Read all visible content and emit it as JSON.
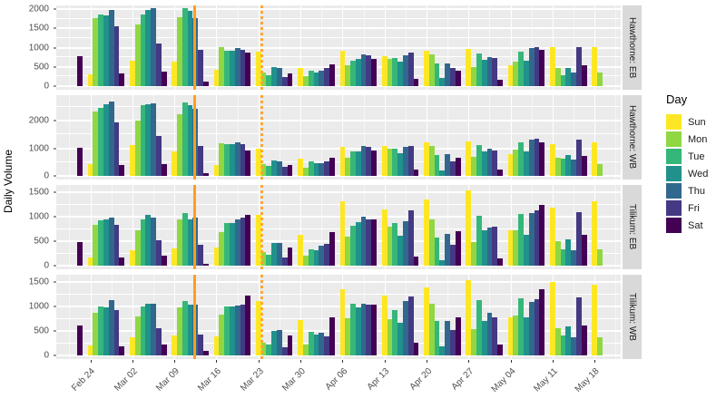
{
  "y_axis_title": "Daily Volume",
  "legend": {
    "title": "Day",
    "entries": [
      {
        "label": "Sun",
        "color": "#FDE725"
      },
      {
        "label": "Mon",
        "color": "#90D743"
      },
      {
        "label": "Tue",
        "color": "#35B779"
      },
      {
        "label": "Wed",
        "color": "#21918C"
      },
      {
        "label": "Thu",
        "color": "#31688E"
      },
      {
        "label": "Fri",
        "color": "#443983"
      },
      {
        "label": "Sat",
        "color": "#440154"
      }
    ]
  },
  "chart_data": {
    "type": "bar",
    "grouping": "weekly groups of daily bars, days Sun-Sat",
    "x_tick_labels": [
      "Feb 24",
      "Mar 02",
      "Mar 09",
      "Mar 16",
      "Mar 23",
      "Mar 30",
      "Apr 06",
      "Apr 13",
      "Apr 20",
      "Apr 27",
      "May 04",
      "May 11",
      "May 18"
    ],
    "day_order": [
      "Sun",
      "Mon",
      "Tue",
      "Wed",
      "Thu",
      "Fri",
      "Sat"
    ],
    "panel_background": "#EBEBEB",
    "vlines": [
      {
        "style": "solid",
        "color": "#FF9E1B",
        "x_frac": 0.2428
      },
      {
        "style": "dotted",
        "color": "#FFA733",
        "x_frac": 0.3617
      }
    ],
    "facets": [
      {
        "label": "Hawthorne: EB",
        "y_ticks": [
          0,
          500,
          1000,
          1500,
          2000
        ],
        "y_minor": [
          250,
          750,
          1250,
          1750
        ],
        "y_max": 2095,
        "weeks": [
          {
            "label": null,
            "values": [
              null,
              null,
              null,
              null,
              null,
              null,
              780
            ]
          },
          {
            "label": "Feb 24",
            "values": [
              300,
              1760,
              1850,
              1840,
              1975,
              1560,
              330
            ]
          },
          {
            "label": "Mar 02",
            "values": [
              660,
              1590,
              1860,
              1970,
              2020,
              1100,
              380
            ]
          },
          {
            "label": "Mar 09",
            "values": [
              640,
              1800,
              2020,
              1950,
              1775,
              940,
              120
            ]
          },
          {
            "label": "Mar 16",
            "values": [
              430,
              1010,
              920,
              930,
              990,
              940,
              870
            ]
          },
          {
            "label": "Mar 23",
            "values": [
              890,
              360,
              275,
              490,
              465,
              245,
              325
            ]
          },
          {
            "label": "Mar 30",
            "values": [
              465,
              260,
              405,
              360,
              405,
              465,
              560
            ]
          },
          {
            "label": "Apr 06",
            "values": [
              910,
              535,
              665,
              700,
              815,
              790,
              715
            ]
          },
          {
            "label": "Apr 13",
            "values": [
              780,
              700,
              725,
              625,
              795,
              870,
              195
            ]
          },
          {
            "label": "Apr 20",
            "values": [
              910,
              815,
              585,
              220,
              600,
              465,
              410
            ]
          },
          {
            "label": "Apr 27",
            "values": [
              975,
              490,
              845,
              685,
              765,
              730,
              165
            ]
          },
          {
            "label": "May 04",
            "values": [
              545,
              625,
              895,
              665,
              990,
              1005,
              950
            ]
          },
          {
            "label": "May 11",
            "values": [
              1005,
              460,
              290,
              470,
              350,
              1010,
              550
            ]
          },
          {
            "label": "May 18",
            "values": [
              1005,
              350,
              null,
              null,
              null,
              null,
              null
            ]
          }
        ]
      },
      {
        "label": "Hawthorne: WB",
        "y_ticks": [
          0,
          1000,
          2000
        ],
        "y_minor": [
          500,
          1500,
          2500
        ],
        "y_max": 2920,
        "weeks": [
          {
            "label": null,
            "values": [
              null,
              null,
              null,
              null,
              null,
              null,
              1005
            ]
          },
          {
            "label": "Feb 24",
            "values": [
              415,
              2330,
              2470,
              2600,
              2700,
              1920,
              390
            ]
          },
          {
            "label": "Mar 02",
            "values": [
              1100,
              2000,
              2550,
              2600,
              2630,
              1450,
              440
            ]
          },
          {
            "label": "Mar 09",
            "values": [
              870,
              2220,
              2650,
              2565,
              2435,
              1090,
              100
            ]
          },
          {
            "label": "Mar 16",
            "values": [
              390,
              1180,
              1145,
              1160,
              1200,
              1165,
              930
            ]
          },
          {
            "label": "Mar 23",
            "values": [
              970,
              440,
              350,
              560,
              535,
              330,
              395
            ]
          },
          {
            "label": "Mar 30",
            "values": [
              625,
              305,
              510,
              445,
              475,
              535,
              650
            ]
          },
          {
            "label": "Apr 06",
            "values": [
              1050,
              670,
              880,
              900,
              1085,
              1050,
              935
            ]
          },
          {
            "label": "Apr 13",
            "values": [
              1085,
              970,
              995,
              820,
              1050,
              1085,
              245
            ]
          },
          {
            "label": "Apr 20",
            "values": [
              1225,
              1085,
              740,
              210,
              790,
              510,
              650
            ]
          },
          {
            "label": "Apr 27",
            "values": [
              1250,
              705,
              1130,
              900,
              995,
              935,
              245
            ]
          },
          {
            "label": "May 04",
            "values": [
              800,
              940,
              1200,
              880,
              1320,
              1330,
              1200
            ]
          },
          {
            "label": "May 11",
            "values": [
              1150,
              650,
              630,
              740,
              590,
              1320,
              710
            ]
          },
          {
            "label": "May 18",
            "values": [
              1225,
              440,
              null,
              null,
              null,
              null,
              null
            ]
          }
        ]
      },
      {
        "label": "Tilikum: EB",
        "y_ticks": [
          0,
          500,
          1000,
          1500
        ],
        "y_minor": [
          250,
          750,
          1250
        ],
        "y_max": 1650,
        "weeks": [
          {
            "label": null,
            "values": [
              null,
              null,
              null,
              null,
              null,
              null,
              480
            ]
          },
          {
            "label": "Feb 24",
            "values": [
              170,
              835,
              920,
              945,
              975,
              840,
              165
            ]
          },
          {
            "label": "Mar 02",
            "values": [
              310,
              730,
              955,
              1030,
              990,
              520,
              195
            ]
          },
          {
            "label": "Mar 09",
            "values": [
              350,
              955,
              1080,
              945,
              975,
              430,
              40
            ]
          },
          {
            "label": "Mar 16",
            "values": [
              375,
              690,
              870,
              870,
              950,
              990,
              1030
            ]
          },
          {
            "label": "Mar 23",
            "values": [
              1035,
              285,
              220,
              465,
              470,
              160,
              375
            ]
          },
          {
            "label": "Mar 30",
            "values": [
              625,
              205,
              340,
              315,
              400,
              440,
              685
            ]
          },
          {
            "label": "Apr 06",
            "values": [
              1315,
              585,
              820,
              895,
              995,
              945,
              955
            ]
          },
          {
            "label": "Apr 13",
            "values": [
              1145,
              790,
              870,
              605,
              900,
              1130,
              185
            ]
          },
          {
            "label": "Apr 20",
            "values": [
              1345,
              955,
              575,
              120,
              650,
              420,
              710
            ]
          },
          {
            "label": "Apr 27",
            "values": [
              1530,
              480,
              1020,
              730,
              770,
              790,
              155
            ]
          },
          {
            "label": "May 04",
            "values": [
              730,
              730,
              1055,
              635,
              1080,
              1140,
              1240
            ]
          },
          {
            "label": "May 11",
            "values": [
              1180,
              510,
              340,
              535,
              315,
              1095,
              635
            ]
          },
          {
            "label": "May 18",
            "values": [
              1325,
              340,
              null,
              null,
              null,
              null,
              null
            ]
          }
        ]
      },
      {
        "label": "Tilikum: WB",
        "y_ticks": [
          0,
          500,
          1000,
          1500
        ],
        "y_minor": [
          250,
          750,
          1250
        ],
        "y_max": 1650,
        "weeks": [
          {
            "label": null,
            "values": [
              null,
              null,
              null,
              null,
              null,
              null,
              610
            ]
          },
          {
            "label": "Feb 24",
            "values": [
              210,
              870,
              1000,
              990,
              1130,
              920,
              180
            ]
          },
          {
            "label": "Mar 02",
            "values": [
              380,
              795,
              1005,
              1065,
              1055,
              565,
              230
            ]
          },
          {
            "label": "Mar 09",
            "values": [
              415,
              990,
              1110,
              1035,
              1030,
              435,
              85
            ]
          },
          {
            "label": "Mar 16",
            "values": [
              390,
              840,
              1000,
              1000,
              1020,
              1035,
              1220
            ]
          },
          {
            "label": "Mar 23",
            "values": [
              1105,
              260,
              225,
              505,
              515,
              165,
              410
            ]
          },
          {
            "label": "Mar 30",
            "values": [
              720,
              215,
              485,
              425,
              460,
              395,
              770
            ]
          },
          {
            "label": "Apr 06",
            "values": [
              1350,
              760,
              1060,
              980,
              1060,
              1030,
              1040
            ]
          },
          {
            "label": "Apr 13",
            "values": [
              1215,
              750,
              935,
              670,
              1120,
              1200,
              260
            ]
          },
          {
            "label": "Apr 20",
            "values": [
              1385,
              1060,
              700,
              185,
              705,
              515,
              770
            ]
          },
          {
            "label": "Apr 27",
            "values": [
              1535,
              545,
              1130,
              705,
              865,
              770,
              230
            ]
          },
          {
            "label": "May 04",
            "values": [
              780,
              810,
              1165,
              770,
              1090,
              1150,
              1350
            ]
          },
          {
            "label": "May 11",
            "values": [
              1500,
              565,
              410,
              600,
              365,
              1180,
              610
            ]
          },
          {
            "label": "May 18",
            "values": [
              1450,
              380,
              null,
              null,
              null,
              null,
              null
            ]
          }
        ]
      }
    ]
  }
}
